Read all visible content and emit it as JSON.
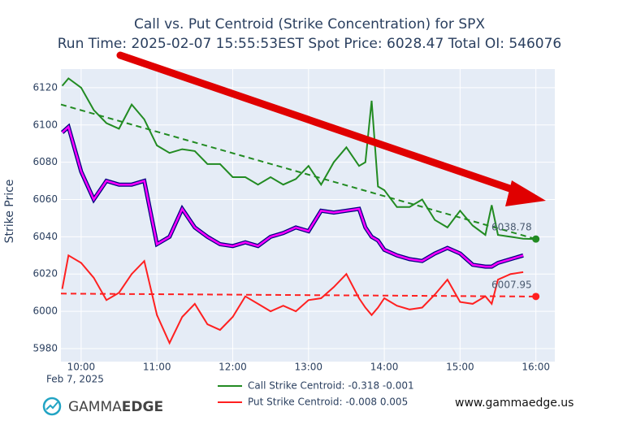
{
  "chart_data": {
    "type": "line",
    "title": "Call vs. Put Centroid (Strike Concentration) for SPX",
    "subtitle": "Run Time: 2025-02-07 15:55:53EST Spot Price: 6028.47 Total OI: 546076",
    "y_label": "Strike Price",
    "x_date_label": "Feb 7, 2025",
    "xlim": [
      "09:44",
      "16:15"
    ],
    "xticks": [
      "10:00",
      "11:00",
      "12:00",
      "13:00",
      "14:00",
      "15:00",
      "16:00"
    ],
    "ylim": [
      5973,
      6130
    ],
    "yticks": [
      5980,
      6000,
      6020,
      6040,
      6060,
      6080,
      6100,
      6120
    ],
    "grid": true,
    "x": [
      "09:45",
      "09:50",
      "10:00",
      "10:10",
      "10:20",
      "10:30",
      "10:40",
      "10:50",
      "11:00",
      "11:10",
      "11:20",
      "11:30",
      "11:40",
      "11:50",
      "12:00",
      "12:10",
      "12:20",
      "12:30",
      "12:40",
      "12:50",
      "13:00",
      "13:10",
      "13:20",
      "13:30",
      "13:40",
      "13:45",
      "13:50",
      "13:55",
      "14:00",
      "14:10",
      "14:20",
      "14:30",
      "14:40",
      "14:50",
      "15:00",
      "15:10",
      "15:20",
      "15:25",
      "15:30",
      "15:40",
      "15:50",
      "16:00"
    ],
    "series": [
      {
        "name": "Call Strike Centroid: -0.318 -0.001",
        "color": "#228b22",
        "values": [
          6121,
          6125,
          6120,
          6108,
          6101,
          6098,
          6111,
          6103,
          6089,
          6085,
          6087,
          6086,
          6079,
          6079,
          6072,
          6072,
          6068,
          6072,
          6068,
          6071,
          6078,
          6068,
          6080,
          6088,
          6078,
          6080,
          6113,
          6067,
          6065,
          6056,
          6056,
          6060,
          6049,
          6045,
          6054,
          6046,
          6041,
          6057,
          6041,
          6040,
          6039,
          6038.78
        ]
      },
      {
        "name": "Put Strike Centroid: -0.008 0.005",
        "color": "#ff2020",
        "values": [
          6012,
          6030,
          6026,
          6018,
          6006,
          6010,
          6020,
          6027,
          5998,
          5983,
          5997,
          6004,
          5993,
          5990,
          5997,
          6008,
          6004,
          6000,
          6003,
          6000,
          6006,
          6007,
          6013,
          6020,
          6007,
          6002,
          5998,
          6002,
          6007,
          6003,
          6001,
          6002,
          6009,
          6017,
          6005,
          6004,
          6008,
          6004,
          6017,
          6020,
          6021,
          null
        ]
      }
    ],
    "price_line": {
      "color": "#ff00ff",
      "edge_color": "#000080",
      "values": [
        6096,
        6099,
        6075,
        6060,
        6070,
        6068,
        6068,
        6070,
        6036,
        6040,
        6055,
        6045,
        6040,
        6036,
        6035,
        6037,
        6035,
        6040,
        6042,
        6045,
        6043,
        6054,
        6053,
        6054,
        6055,
        6045,
        6040,
        6038,
        6033,
        6030,
        6028,
        6027,
        6031,
        6034,
        6031,
        6025,
        6024,
        6024,
        6026,
        6028,
        6030,
        null
      ]
    },
    "trend_lines": [
      {
        "color": "#228b22",
        "x": [
          "09:44",
          "16:00"
        ],
        "values": [
          6111,
          6038.78
        ]
      },
      {
        "color": "#ff2020",
        "x": [
          "09:44",
          "16:00"
        ],
        "values": [
          6009.5,
          6007.95
        ]
      }
    ],
    "logo_text": [
      "GAMMA",
      "EDGE"
    ],
    "website": "www.gammaedge.us"
  }
}
